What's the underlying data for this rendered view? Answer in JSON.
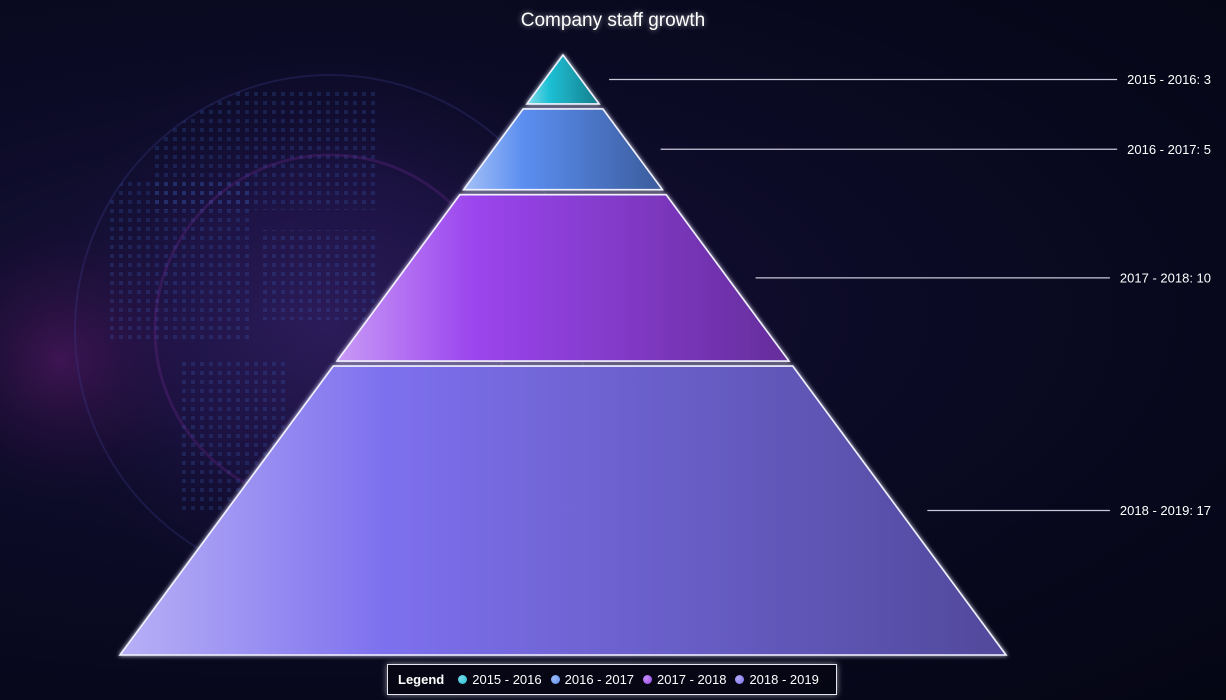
{
  "chart_data": {
    "type": "pyramid",
    "title": "Company staff growth",
    "categories": [
      "2015 - 2016",
      "2016 - 2017",
      "2017 - 2018",
      "2018 - 2019"
    ],
    "values": [
      3,
      5,
      10,
      17
    ],
    "series": [
      {
        "name": "2015 - 2016",
        "value": 3,
        "color": "#1fc1d6",
        "label": "2015 - 2016: 3"
      },
      {
        "name": "2016 - 2017",
        "value": 5,
        "color": "#5b8ef0",
        "label": "2016 - 2017: 5"
      },
      {
        "name": "2017 - 2018",
        "value": 10,
        "color": "#9b45ee",
        "label": "2017 - 2018: 10"
      },
      {
        "name": "2018 - 2019",
        "value": 17,
        "color": "#7d70ee",
        "label": "2018 - 2019: 17"
      }
    ],
    "legend": {
      "title": "Legend",
      "placement": "bottom-center"
    }
  }
}
